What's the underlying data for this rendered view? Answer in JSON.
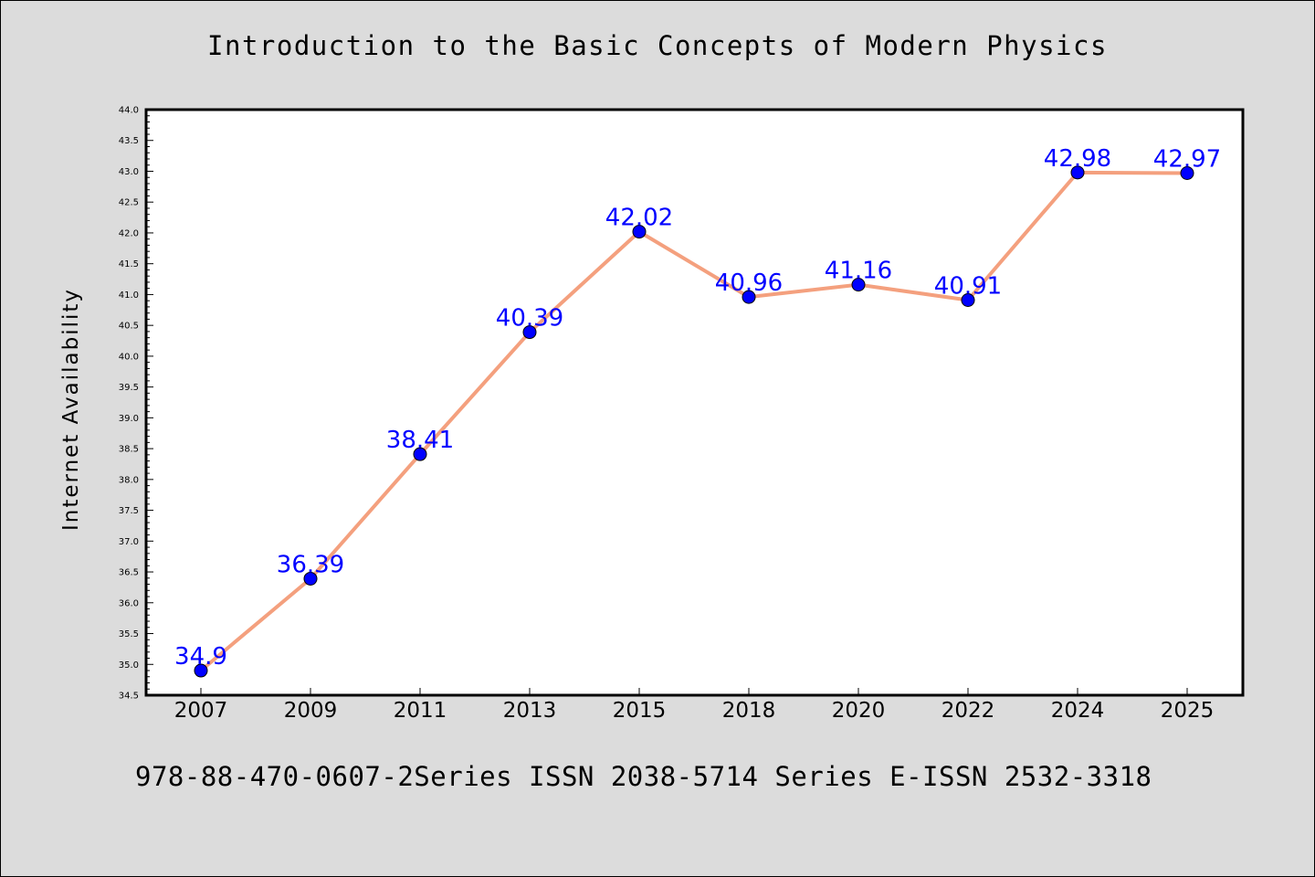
{
  "chart_data": {
    "type": "line",
    "title": "Introduction to the Basic Concepts of Modern Physics",
    "footer": "978-88-470-0607-2Series ISSN 2038-5714 Series E-ISSN 2532-3318",
    "xlabel": "",
    "ylabel": "Internet Availability",
    "categories": [
      "2007",
      "2009",
      "2011",
      "2013",
      "2015",
      "2018",
      "2020",
      "2022",
      "2024",
      "2025"
    ],
    "series": [
      {
        "values": [
          34.9,
          36.39,
          38.41,
          40.39,
          42.02,
          40.96,
          41.16,
          40.91,
          42.98,
          42.97
        ],
        "labels": [
          "34.9",
          "36.39",
          "38.41",
          "40.39",
          "42.02",
          "40.96",
          "41.16",
          "40.91",
          "42.98",
          "42.97"
        ],
        "line_color": "#f4a07e",
        "marker_color": "#0000ff"
      }
    ],
    "ylim": [
      34.5,
      44.0
    ],
    "yticks": [
      "34.5",
      "35.0",
      "35.5",
      "36.0",
      "36.5",
      "37.0",
      "37.5",
      "38.0",
      "38.5",
      "39.0",
      "39.5",
      "40.0",
      "40.5",
      "41.0",
      "41.5",
      "42.0",
      "42.5",
      "43.0",
      "43.5",
      "44.0"
    ],
    "grid": false,
    "legend": "none",
    "colors": {
      "background": "#dcdcdc",
      "plot_background": "#ffffff",
      "data_label": "#0000ff"
    }
  }
}
